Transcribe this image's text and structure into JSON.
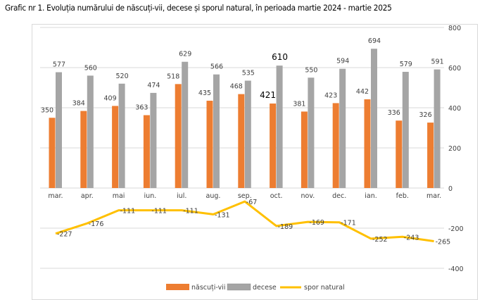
{
  "title": "Grafic nr 1. Evoluția numărului de născuți-vii, decese și sporul natural, în perioada  martie 2024 - martie 2025",
  "chart_data": {
    "type": "bar",
    "categories": [
      "mar.",
      "apr.",
      "mai",
      "iun.",
      "iul.",
      "aug.",
      "sep.",
      "oct.",
      "nov.",
      "dec.",
      "ian.",
      "feb.",
      "mar."
    ],
    "series": [
      {
        "name": "născuți-vii",
        "type": "bar",
        "color": "#ED7D31",
        "values": [
          350,
          384,
          409,
          363,
          518,
          435,
          468,
          421,
          381,
          423,
          442,
          336,
          326
        ]
      },
      {
        "name": "decese",
        "type": "bar",
        "color": "#A5A5A5",
        "values": [
          577,
          560,
          520,
          474,
          629,
          566,
          535,
          610,
          550,
          594,
          694,
          579,
          591
        ]
      },
      {
        "name": "spor natural",
        "type": "line",
        "color": "#FFC000",
        "values": [
          -227,
          -176,
          -111,
          -111,
          -111,
          -131,
          -67,
          -189,
          -169,
          -171,
          -252,
          -243,
          -265
        ]
      }
    ],
    "y_axis": {
      "position": "right",
      "ylim": [
        -400,
        800
      ],
      "ticks": [
        800,
        600,
        400,
        200,
        0,
        -200,
        -400
      ]
    },
    "grid": true,
    "legend": "bottom"
  }
}
